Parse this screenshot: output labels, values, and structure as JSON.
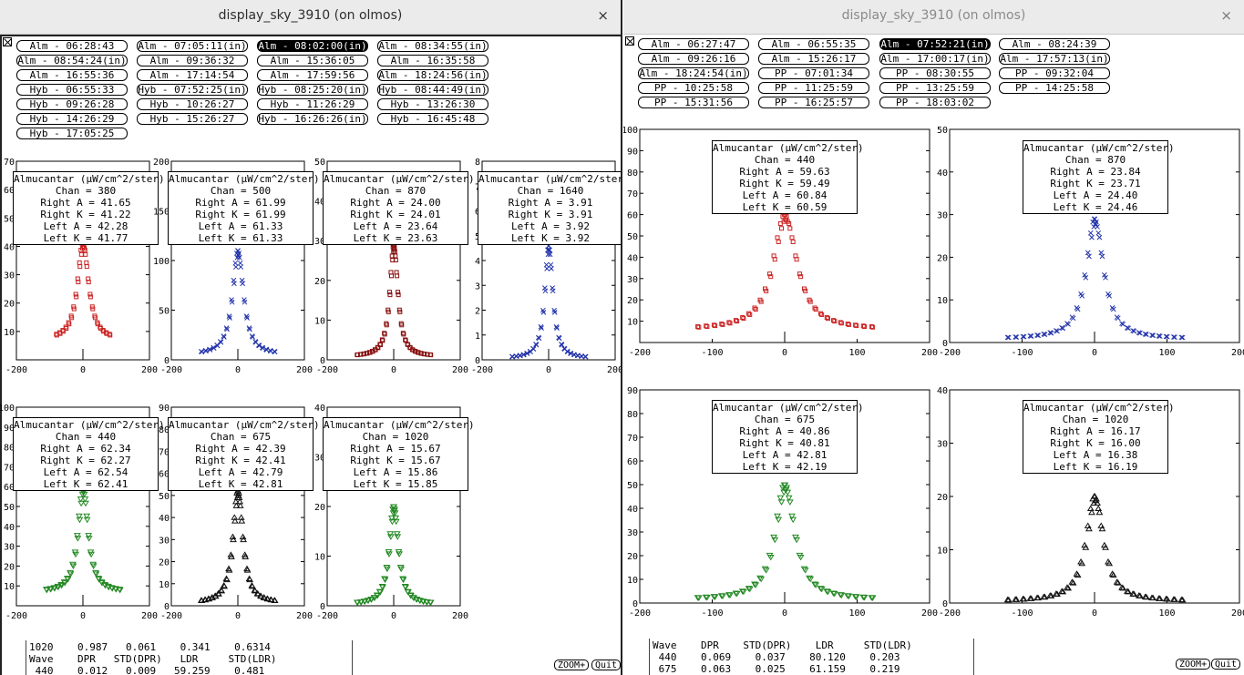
{
  "left": {
    "title": "display_sky_3910 (on olmos)",
    "close": "×",
    "buttons": [
      {
        "text": "Alm - 06:28:43",
        "sel": false
      },
      {
        "text": "Alm - 07:05:11(in)",
        "sel": false
      },
      {
        "text": "Alm - 08:02:00(in)",
        "sel": true
      },
      {
        "text": "Alm - 08:34:55(in)",
        "sel": false
      },
      {
        "text": "Alm - 08:54:24(in)",
        "sel": false
      },
      {
        "text": "Alm - 09:36:32",
        "sel": false
      },
      {
        "text": "Alm - 15:36:05",
        "sel": false
      },
      {
        "text": "Alm - 16:35:58",
        "sel": false
      },
      {
        "text": "Alm - 16:55:36",
        "sel": false
      },
      {
        "text": "Alm - 17:14:54",
        "sel": false
      },
      {
        "text": "Alm - 17:59:56",
        "sel": false
      },
      {
        "text": "Alm - 18:24:56(in)",
        "sel": false
      },
      {
        "text": "Hyb - 06:55:33",
        "sel": false
      },
      {
        "text": "Hyb - 07:52:25(in)",
        "sel": false
      },
      {
        "text": "Hyb - 08:25:20(in)",
        "sel": false
      },
      {
        "text": "Hyb - 08:44:49(in)",
        "sel": false
      },
      {
        "text": "Hyb - 09:26:28",
        "sel": false
      },
      {
        "text": "Hyb - 10:26:27",
        "sel": false
      },
      {
        "text": "Hyb - 11:26:29",
        "sel": false
      },
      {
        "text": "Hyb - 13:26:30",
        "sel": false
      },
      {
        "text": "Hyb - 14:26:29",
        "sel": false
      },
      {
        "text": "Hyb - 15:26:27",
        "sel": false
      },
      {
        "text": "Hyb - 16:26:26(in)",
        "sel": false
      },
      {
        "text": "Hyb - 16:45:48",
        "sel": false
      },
      {
        "text": "Hyb - 17:05:25",
        "sel": false
      }
    ],
    "bottom": {
      "lines": [
        "1020    0.987   0.061    0.341    0.6314",
        "Wave    DPR   STD(DPR)   LDR     STD(LDR)",
        " 440    0.012   0.009   59.259    0.481"
      ]
    },
    "zoom": "ZOOM+",
    "quit": "Quit"
  },
  "right": {
    "title": "display_sky_3910 (on olmos)",
    "close": "×",
    "buttons": [
      {
        "text": "Alm - 06:27:47",
        "sel": false
      },
      {
        "text": "Alm - 06:55:35",
        "sel": false
      },
      {
        "text": "Alm - 07:52:21(in)",
        "sel": true
      },
      {
        "text": "Alm - 08:24:39",
        "sel": false
      },
      {
        "text": "Alm - 09:26:16",
        "sel": false
      },
      {
        "text": "Alm - 15:26:17",
        "sel": false
      },
      {
        "text": "Alm - 17:00:17(in)",
        "sel": false
      },
      {
        "text": "Alm - 17:57:13(in)",
        "sel": false
      },
      {
        "text": "Alm - 18:24:54(in)",
        "sel": false
      },
      {
        "text": "PP - 07:01:34",
        "sel": false
      },
      {
        "text": "PP - 08:30:55",
        "sel": false
      },
      {
        "text": "PP - 09:32:04",
        "sel": false
      },
      {
        "text": "PP - 10:25:58",
        "sel": false
      },
      {
        "text": "PP - 11:25:59",
        "sel": false
      },
      {
        "text": "PP - 13:25:59",
        "sel": false
      },
      {
        "text": "PP - 14:25:58",
        "sel": false
      },
      {
        "text": "PP - 15:31:56",
        "sel": false
      },
      {
        "text": "PP - 16:25:57",
        "sel": false
      },
      {
        "text": "PP - 18:03:02",
        "sel": false
      }
    ],
    "bottom": {
      "lines": [
        "Wave    DPR    STD(DPR)    LDR     STD(LDR)",
        " 440    0.069    0.037    80.120    0.203",
        " 675    0.063    0.025    61.159    0.219"
      ]
    },
    "zoom": "ZOOM+",
    "quit": "Quit"
  },
  "chart_data": [
    {
      "type": "scatter",
      "window": "left",
      "chan": "380",
      "legend_title": "Almucantar (µW/cm^2/ster)",
      "legend": [
        "Chan = 380",
        "Right A = 41.65",
        "Right K = 41.22",
        "Left A = 42.28",
        "Left K = 41.77"
      ],
      "xlim": [
        -200,
        200
      ],
      "ylim": [
        0,
        70
      ],
      "xticks": [
        -200,
        0,
        200
      ],
      "yticks": [
        10,
        20,
        30,
        40,
        50,
        60,
        70
      ],
      "marker": "square",
      "color": "#cc2222",
      "peak": 41.6,
      "base": 7,
      "width": 22,
      "xmin": -80,
      "xmax": 80,
      "n": 26
    },
    {
      "type": "scatter",
      "window": "left",
      "chan": "500",
      "legend_title": "Almucantar (µW/cm^2/ster)",
      "legend": [
        "Chan = 500",
        "Right A = 61.99",
        "Right K = 61.99",
        "Left A = 61.33",
        "Left K = 61.33"
      ],
      "xlim": [
        -200,
        200
      ],
      "ylim": [
        0,
        200
      ],
      "xticks": [
        -200,
        0,
        200
      ],
      "yticks": [
        0,
        50,
        100,
        150,
        200
      ],
      "marker": "x",
      "color": "#2233aa",
      "peak": 110,
      "base": 5,
      "width": 22,
      "xmin": -110,
      "xmax": 110,
      "n": 28
    },
    {
      "type": "scatter",
      "window": "left",
      "chan": "870",
      "legend_title": "Almucantar (µW/cm^2/ster)",
      "legend": [
        "Chan = 870",
        "Right A = 24.00",
        "Right K = 24.01",
        "Left A = 23.64",
        "Left K = 23.63"
      ],
      "xlim": [
        -200,
        200
      ],
      "ylim": [
        0,
        50
      ],
      "xticks": [
        -200,
        0,
        200
      ],
      "yticks": [
        0,
        10,
        20,
        30,
        40,
        50
      ],
      "marker": "square",
      "color": "#881111",
      "peak": 29,
      "base": 0.8,
      "width": 16,
      "xmin": -110,
      "xmax": 110,
      "n": 36
    },
    {
      "type": "scatter",
      "window": "left",
      "chan": "1640",
      "legend_title": "Almucantar (µW/cm^2/ster)",
      "legend": [
        "Chan = 1640",
        "Right A = 3.91",
        "Right K = 3.91",
        "Left A = 3.92",
        "Left K = 3.92"
      ],
      "xlim": [
        -200,
        200
      ],
      "ylim": [
        0,
        8
      ],
      "xticks": [
        -200,
        0,
        200
      ],
      "yticks": [
        0,
        1,
        2,
        3,
        4,
        5,
        6,
        7,
        8
      ],
      "marker": "x",
      "color": "#2233aa",
      "peak": 4.6,
      "base": 0.05,
      "width": 16,
      "xmin": -110,
      "xmax": 110,
      "n": 30
    },
    {
      "type": "scatter",
      "window": "left",
      "chan": "440",
      "legend_title": "Almucantar (µW/cm^2/ster)",
      "legend": [
        "Chan = 440",
        "Right A = 62.34",
        "Right K = 62.27",
        "Left A = 62.54",
        "Left K = 62.41"
      ],
      "xlim": [
        -200,
        200
      ],
      "ylim": [
        0,
        100
      ],
      "xticks": [
        -200,
        0,
        200
      ],
      "yticks": [
        10,
        20,
        30,
        40,
        50,
        60,
        70,
        80,
        90,
        100
      ],
      "marker": "tri",
      "color": "#228822",
      "peak": 60,
      "base": 7,
      "width": 20,
      "xmin": -110,
      "xmax": 110,
      "n": 30
    },
    {
      "type": "scatter",
      "window": "left",
      "chan": "675",
      "legend_title": "Almucantar (µW/cm^2/ster)",
      "legend": [
        "Chan = 675",
        "Right A = 42.39",
        "Right K = 42.41",
        "Left A = 42.79",
        "Left K = 42.81"
      ],
      "xlim": [
        -200,
        200
      ],
      "ylim": [
        0,
        90
      ],
      "xticks": [
        -200,
        0,
        200
      ],
      "yticks": [
        0,
        10,
        20,
        30,
        40,
        50,
        60,
        70,
        80,
        90
      ],
      "marker": "tri-up",
      "color": "#111111",
      "peak": 52,
      "base": 1,
      "width": 20,
      "xmin": -110,
      "xmax": 110,
      "n": 32
    },
    {
      "type": "scatter",
      "window": "left",
      "chan": "1020",
      "legend_title": "Almucantar (µW/cm^2/ster)",
      "legend": [
        "Chan = 1020",
        "Right A = 15.67",
        "Right K = 15.67",
        "Left A = 15.86",
        "Left K = 15.85"
      ],
      "xlim": [
        -200,
        200
      ],
      "ylim": [
        0,
        40
      ],
      "xticks": [
        -200,
        0,
        200
      ],
      "yticks": [
        0,
        10,
        20,
        30,
        40
      ],
      "marker": "tri",
      "color": "#228822",
      "peak": 20,
      "base": 0.3,
      "width": 18,
      "xmin": -110,
      "xmax": 110,
      "n": 32
    },
    {
      "type": "scatter",
      "window": "right",
      "chan": "440",
      "legend_title": "Almucantar (µW/cm^2/ster)",
      "legend": [
        "Chan = 440",
        "Right A = 59.63",
        "Right K = 59.49",
        "Left A = 60.84",
        "Left K = 60.59"
      ],
      "xlim": [
        -200,
        200
      ],
      "ylim": [
        0,
        100
      ],
      "xticks": [
        -200,
        -100,
        0,
        100,
        200
      ],
      "yticks": [
        10,
        20,
        30,
        40,
        50,
        60,
        70,
        80,
        90,
        100
      ],
      "marker": "square",
      "color": "#cc2222",
      "peak": 60,
      "base": 6,
      "width": 22,
      "xmin": -120,
      "xmax": 120,
      "n": 34
    },
    {
      "type": "scatter",
      "window": "right",
      "chan": "870",
      "legend_title": "Almucantar (µW/cm^2/ster)",
      "legend": [
        "Chan = 870",
        "Right A = 23.84",
        "Right K = 23.71",
        "Left A = 24.40",
        "Left K = 24.46"
      ],
      "xlim": [
        -200,
        200
      ],
      "ylim": [
        0,
        50
      ],
      "xticks": [
        -200,
        -100,
        0,
        100,
        200
      ],
      "yticks": [
        0,
        10,
        20,
        30,
        40,
        50
      ],
      "marker": "x",
      "color": "#2233aa",
      "peak": 29,
      "base": 0.8,
      "width": 16,
      "xmin": -120,
      "xmax": 120,
      "n": 36
    },
    {
      "type": "scatter",
      "window": "right",
      "chan": "675",
      "legend_title": "Almucantar (µW/cm^2/ster)",
      "legend": [
        "Chan = 675",
        "Right A = 40.86",
        "Right K = 40.81",
        "Left A = 42.81",
        "Left K = 42.19"
      ],
      "xlim": [
        -200,
        200
      ],
      "ylim": [
        0,
        90
      ],
      "xticks": [
        -200,
        -100,
        0,
        100,
        200
      ],
      "yticks": [
        0,
        10,
        20,
        30,
        40,
        50,
        60,
        70,
        80,
        90
      ],
      "marker": "tri",
      "color": "#228822",
      "peak": 50,
      "base": 1.5,
      "width": 18,
      "xmin": -120,
      "xmax": 120,
      "n": 34
    },
    {
      "type": "scatter",
      "window": "right",
      "chan": "1020",
      "legend_title": "Almucantar (µW/cm^2/ster)",
      "legend": [
        "Chan = 1020",
        "Right A = 16.17",
        "Right K = 16.00",
        "Left A = 16.38",
        "Left K = 16.19"
      ],
      "xlim": [
        -200,
        200
      ],
      "ylim": [
        0,
        40
      ],
      "xticks": [
        -200,
        -100,
        0,
        100,
        200
      ],
      "yticks": [
        0,
        10,
        20,
        30,
        40
      ],
      "marker": "tri-up",
      "color": "#111111",
      "peak": 20,
      "base": 0.3,
      "width": 16,
      "xmin": -120,
      "xmax": 120,
      "n": 36
    }
  ]
}
